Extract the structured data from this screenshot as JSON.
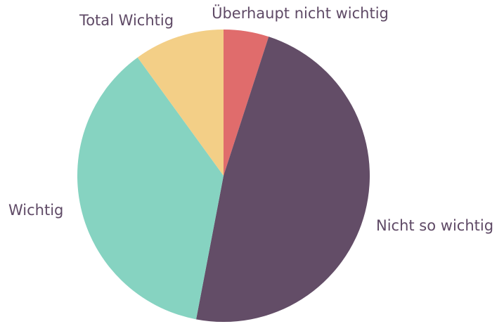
{
  "chart_data": {
    "type": "pie",
    "categories": [
      "Überhaupt nicht wichtig",
      "Nicht so wichtig",
      "Wichtig",
      "Total Wichtig"
    ],
    "values": [
      5,
      48,
      37,
      10
    ],
    "colors": [
      "#e06c6c",
      "#634d67",
      "#86d3c1",
      "#f3cf87"
    ]
  }
}
